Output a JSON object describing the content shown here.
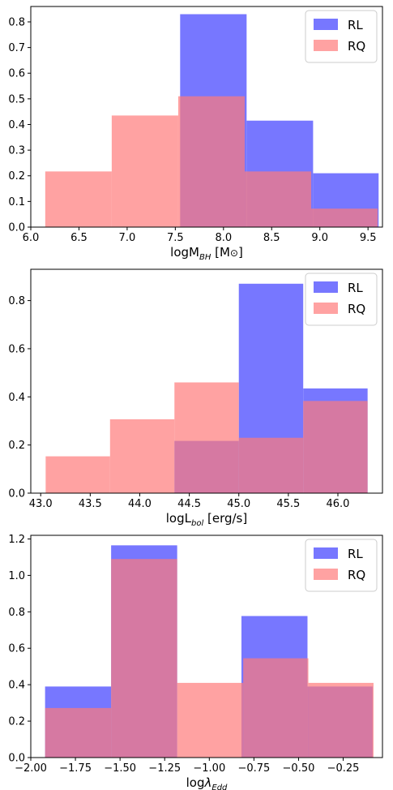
{
  "chart_data": [
    {
      "type": "bar",
      "xlabel_parts": [
        "logM",
        "BH",
        " [M",
        "⊙",
        "]"
      ],
      "legend": [
        "RL",
        "RQ"
      ],
      "legend_position": "upper right",
      "xlim": [
        6.0,
        9.65
      ],
      "ylim": [
        0,
        0.86
      ],
      "xticks": [
        "6.0",
        "6.5",
        "7.0",
        "7.5",
        "8.0",
        "8.5",
        "9.0",
        "9.5"
      ],
      "yticks": [
        "0.0",
        "0.1",
        "0.2",
        "0.3",
        "0.4",
        "0.5",
        "0.6",
        "0.7",
        "0.8"
      ],
      "series": [
        {
          "name": "RL",
          "color": "#7777ff",
          "bins": [
            [
              7.55,
              8.24,
              0.83
            ],
            [
              8.24,
              8.93,
              0.415
            ],
            [
              8.93,
              9.61,
              0.21
            ]
          ]
        },
        {
          "name": "RQ",
          "color": "#ff7a7a",
          "bins": [
            [
              6.15,
              6.84,
              0.217
            ],
            [
              6.84,
              7.53,
              0.435
            ],
            [
              7.53,
              8.22,
              0.51
            ],
            [
              8.22,
              8.91,
              0.217
            ],
            [
              8.91,
              9.6,
              0.072
            ]
          ]
        }
      ]
    },
    {
      "type": "bar",
      "xlabel_parts": [
        "logL",
        "bol",
        " [erg/s]",
        "",
        ""
      ],
      "legend": [
        "RL",
        "RQ"
      ],
      "legend_position": "upper right",
      "xlim": [
        42.9,
        46.45
      ],
      "ylim": [
        0,
        0.93
      ],
      "xticks": [
        "43.0",
        "43.5",
        "44.0",
        "44.5",
        "45.0",
        "45.5",
        "46.0"
      ],
      "yticks": [
        "0.0",
        "0.2",
        "0.4",
        "0.6",
        "0.8"
      ],
      "series": [
        {
          "name": "RL",
          "color": "#7777ff",
          "bins": [
            [
              44.35,
              45.0,
              0.217
            ],
            [
              45.0,
              45.65,
              0.87
            ],
            [
              45.65,
              46.3,
              0.435
            ]
          ]
        },
        {
          "name": "RQ",
          "color": "#ff7a7a",
          "bins": [
            [
              43.05,
              43.7,
              0.153
            ],
            [
              43.7,
              44.35,
              0.307
            ],
            [
              44.35,
              45.0,
              0.46
            ],
            [
              45.0,
              45.65,
              0.23
            ],
            [
              45.65,
              46.3,
              0.383
            ]
          ]
        }
      ]
    },
    {
      "type": "bar",
      "xlabel_parts": [
        "log",
        "Edd",
        "",
        "",
        ""
      ],
      "lambda": true,
      "legend": [
        "RL",
        "RQ"
      ],
      "legend_position": "upper right",
      "xlim": [
        -2.0,
        -0.03
      ],
      "ylim": [
        0,
        1.22
      ],
      "xticks": [
        "−2.00",
        "−1.75",
        "−1.50",
        "−1.25",
        "−1.00",
        "−0.75",
        "−0.50",
        "−0.25"
      ],
      "yticks": [
        "0.0",
        "0.2",
        "0.4",
        "0.6",
        "0.8",
        "1.0",
        "1.2"
      ],
      "series": [
        {
          "name": "RL",
          "color": "#7777ff",
          "bins": [
            [
              -1.92,
              -1.55,
              0.39
            ],
            [
              -1.55,
              -1.18,
              1.165
            ],
            [
              -0.82,
              -0.45,
              0.777
            ],
            [
              -0.45,
              -0.085,
              0.39
            ]
          ]
        },
        {
          "name": "RQ",
          "color": "#ff7a7a",
          "bins": [
            [
              -1.92,
              -1.55,
              0.272
            ],
            [
              -1.55,
              -1.18,
              1.09
            ],
            [
              -1.18,
              -0.81,
              0.41
            ],
            [
              -0.81,
              -0.445,
              0.545
            ],
            [
              -0.445,
              -0.08,
              0.41
            ]
          ]
        }
      ]
    }
  ]
}
